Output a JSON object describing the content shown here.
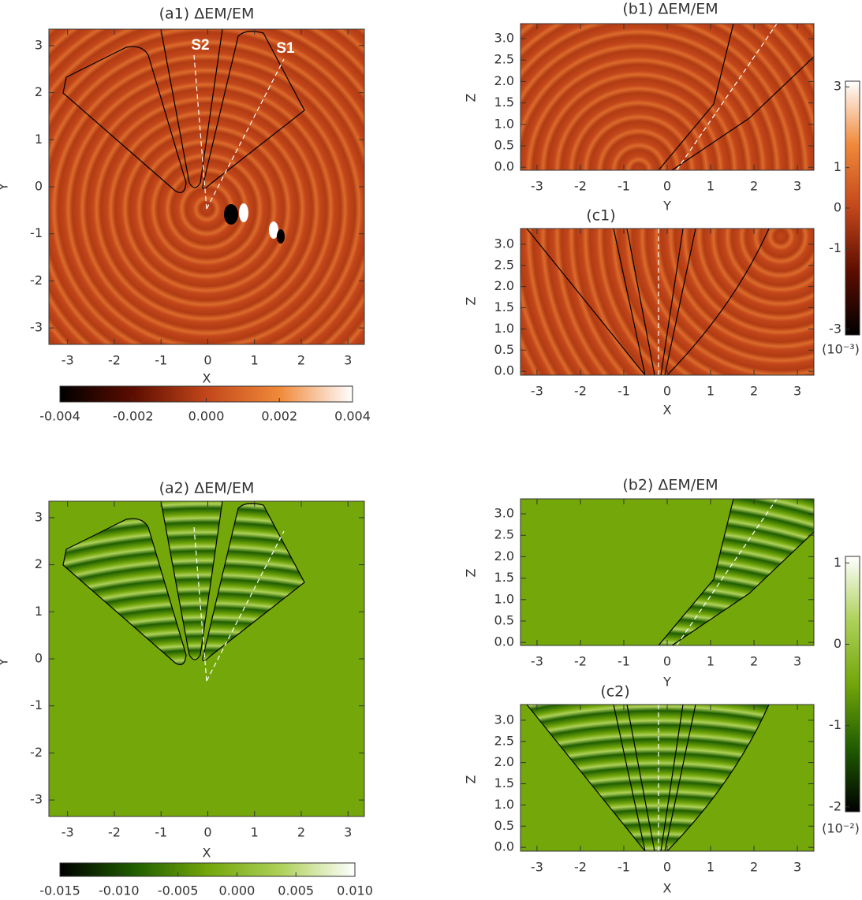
{
  "chart_data": [
    {
      "type": "image",
      "title": "(a1) ΔEM/EM",
      "xlabel": "X",
      "ylabel": "Y",
      "xlim": [
        -3.4,
        3.35
      ],
      "ylim": [
        -3.35,
        3.35
      ],
      "xticks": [
        -3,
        -2,
        -1,
        0,
        1,
        2,
        3
      ],
      "yticks": [
        -3,
        -2,
        -1,
        0,
        1,
        2,
        3
      ],
      "annotations": [
        "S2",
        "S1"
      ]
    },
    {
      "type": "colorbar",
      "orientation": "horizontal",
      "xlim": [
        -0.004,
        0.004
      ],
      "xticks": [
        -0.004,
        -0.002,
        {
          "value": 0,
          "label": "0.000"
        },
        0.002,
        0.004
      ],
      "colors": [
        "#000000",
        "#5c0d00",
        "#c2461a",
        "#f0893a",
        "#ffffff"
      ]
    },
    {
      "type": "image",
      "title": "(b1) ΔEM/EM",
      "xlabel": "Y",
      "ylabel": "Z",
      "xlim": [
        -3.38,
        3.38
      ],
      "ylim": [
        -0.07,
        3.35
      ],
      "xticks": [
        -3,
        -2,
        -1,
        0,
        1,
        2,
        3
      ],
      "yticks": [
        {
          "value": 0,
          "label": "0.0"
        },
        0.5,
        {
          "value": 1,
          "label": "1.0"
        },
        1.5,
        {
          "value": 2,
          "label": "2.0"
        },
        2.5,
        {
          "value": 3,
          "label": "3.0"
        }
      ]
    },
    {
      "type": "image",
      "title": "(c1)",
      "xlabel": "X",
      "ylabel": "Z",
      "xlim": [
        -3.38,
        3.38
      ],
      "ylim": [
        -0.09,
        3.37
      ],
      "xticks": [
        -3,
        -2,
        -1,
        0,
        1,
        2,
        3
      ],
      "yticks": [
        {
          "value": 0,
          "label": "0.0"
        },
        0.5,
        {
          "value": 1,
          "label": "1.0"
        },
        1.5,
        {
          "value": 2,
          "label": "2.0"
        },
        2.5,
        {
          "value": 3,
          "label": "3.0"
        }
      ]
    },
    {
      "type": "colorbar",
      "orientation": "vertical",
      "ylim": [
        -3.14,
        3.14
      ],
      "yticks": [
        3,
        1,
        0,
        -1,
        -3
      ],
      "label": "(10⁻³)",
      "colors": [
        "#000000",
        "#5c0d00",
        "#c2461a",
        "#f0893a",
        "#ffffff"
      ]
    },
    {
      "type": "image",
      "title": "(a2) ΔEM/EM",
      "xlabel": "X",
      "ylabel": "Y",
      "xlim": [
        -3.4,
        3.35
      ],
      "ylim": [
        -3.35,
        3.35
      ],
      "xticks": [
        -3,
        -2,
        -1,
        0,
        1,
        2,
        3
      ],
      "yticks": [
        -3,
        -2,
        -1,
        0,
        1,
        2,
        3
      ]
    },
    {
      "type": "colorbar",
      "orientation": "horizontal",
      "xlim": [
        -0.015,
        0.01
      ],
      "xticks": [
        -0.015,
        {
          "value": -0.01,
          "label": "-0.010"
        },
        -0.005,
        {
          "value": 0,
          "label": "0.000"
        },
        0.005,
        {
          "value": 0.01,
          "label": "0.010"
        }
      ],
      "colors": [
        "#000000",
        "#1f5d00",
        "#72a60a",
        "#aed15a",
        "#ffffff"
      ]
    },
    {
      "type": "image",
      "title": "(b2) ΔEM/EM",
      "xlabel": "Y",
      "ylabel": "Z",
      "xlim": [
        -3.38,
        3.38
      ],
      "ylim": [
        -0.07,
        3.35
      ],
      "xticks": [
        -3,
        -2,
        -1,
        0,
        1,
        2,
        3
      ],
      "yticks": [
        {
          "value": 0,
          "label": "0.0"
        },
        0.5,
        {
          "value": 1,
          "label": "1.0"
        },
        1.5,
        {
          "value": 2,
          "label": "2.0"
        },
        2.5,
        {
          "value": 3,
          "label": "3.0"
        }
      ]
    },
    {
      "type": "image",
      "title": "(c2)",
      "xlabel": "X",
      "ylabel": "Z",
      "xlim": [
        -3.38,
        3.38
      ],
      "ylim": [
        -0.09,
        3.37
      ],
      "xticks": [
        -3,
        -2,
        -1,
        0,
        1,
        2,
        3
      ],
      "yticks": [
        {
          "value": 0,
          "label": "0.0"
        },
        0.5,
        {
          "value": 1,
          "label": "1.0"
        },
        1.5,
        {
          "value": 2,
          "label": "2.0"
        },
        2.5,
        {
          "value": 3,
          "label": "3.0"
        }
      ]
    },
    {
      "type": "colorbar",
      "orientation": "vertical",
      "ylim": [
        -2.06,
        1.08
      ],
      "yticks": [
        1,
        0,
        -1,
        -2
      ],
      "label": "(10⁻²)",
      "colors": [
        "#000000",
        "#1f5d00",
        "#72a60a",
        "#aed15a",
        "#ffffff"
      ]
    }
  ]
}
